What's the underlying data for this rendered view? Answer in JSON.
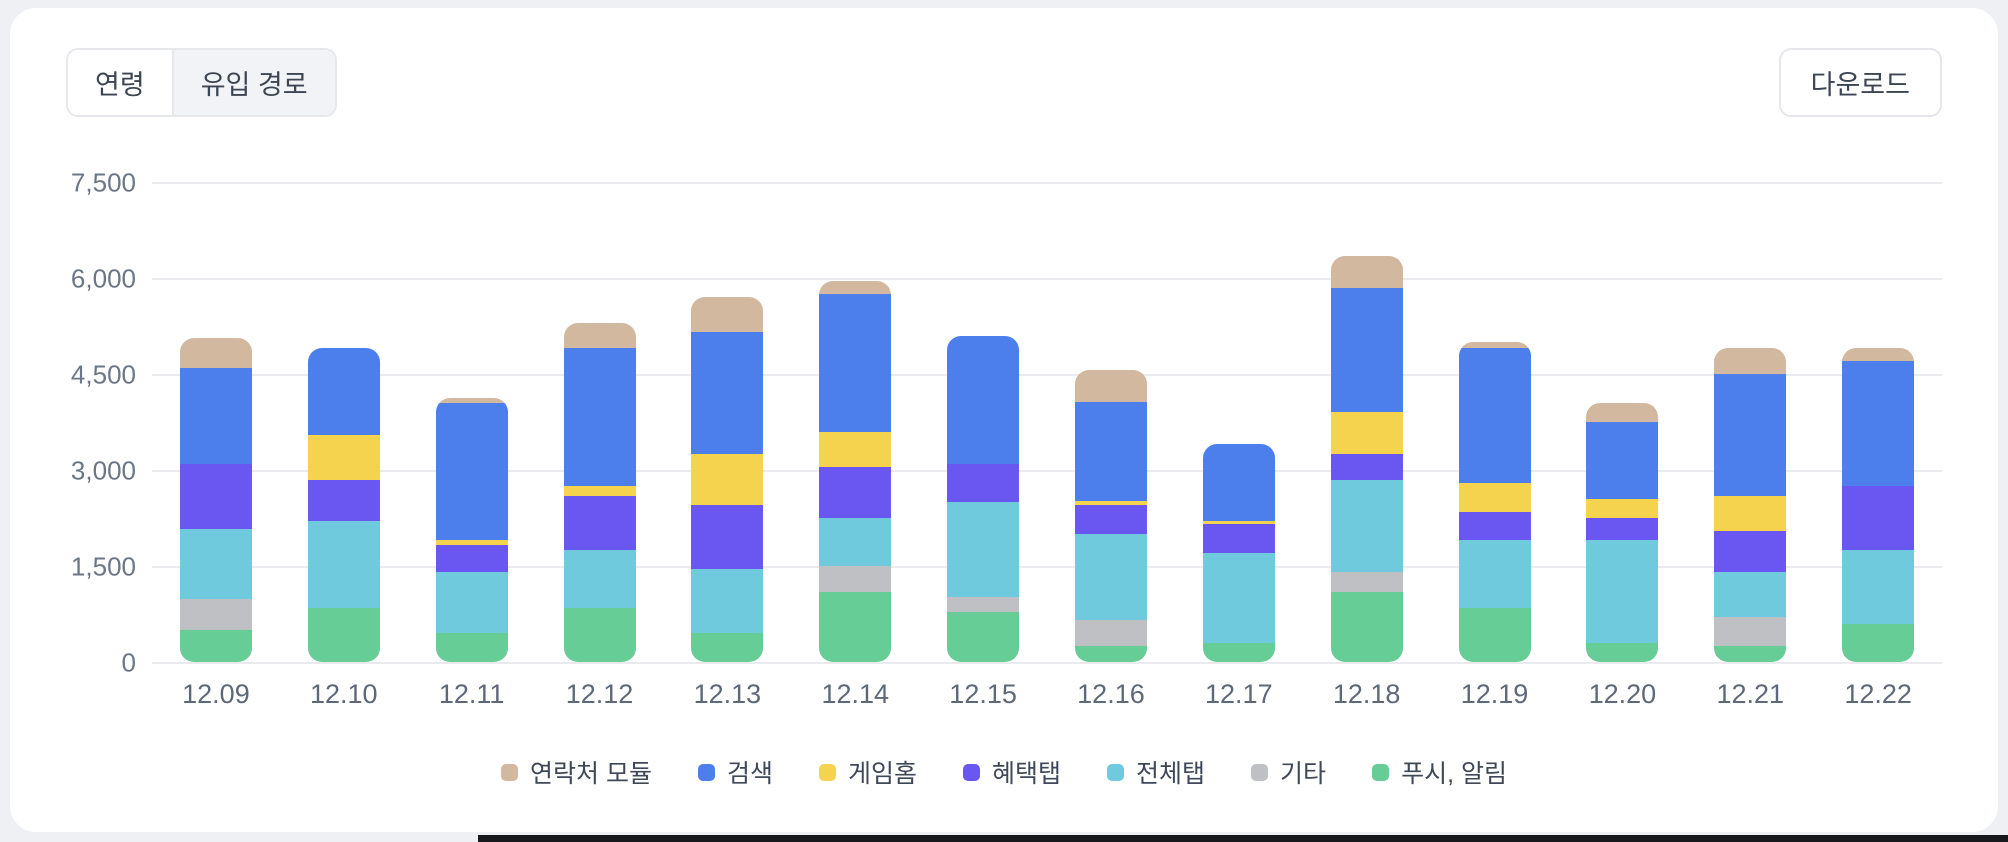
{
  "header": {
    "tabs": [
      {
        "label": "연령",
        "active": true
      },
      {
        "label": "유입 경로",
        "active": false
      }
    ],
    "download_label": "다운로드"
  },
  "colors": {
    "card_bg": "#ffffff",
    "page_bg": "#eef0f4",
    "grid": "#e9ebef",
    "axis_text": "#6b7686",
    "label_text": "#3f4858"
  },
  "chart_data": {
    "type": "bar",
    "stacked": true,
    "title": "",
    "xlabel": "",
    "ylabel": "",
    "grid": true,
    "legend_position": "bottom",
    "ylim": [
      0,
      7500
    ],
    "y_ticks": [
      {
        "label": "0",
        "value": 0
      },
      {
        "label": "1,500",
        "value": 1500
      },
      {
        "label": "3,000",
        "value": 3000
      },
      {
        "label": "4,500",
        "value": 4500
      },
      {
        "label": "6,000",
        "value": 6000
      },
      {
        "label": "7,500",
        "value": 7500
      }
    ],
    "categories": [
      "12.09",
      "12.10",
      "12.11",
      "12.12",
      "12.13",
      "12.14",
      "12.15",
      "12.16",
      "12.17",
      "12.18",
      "12.19",
      "12.20",
      "12.21",
      "12.22"
    ],
    "series": [
      {
        "name": "연락처 모듈",
        "color": "#d2b89e",
        "values": [
          470,
          0,
          70,
          400,
          550,
          200,
          0,
          500,
          0,
          500,
          100,
          300,
          400,
          200
        ]
      },
      {
        "name": "검색",
        "color": "#4d7fec",
        "values": [
          1500,
          1350,
          2150,
          2150,
          1900,
          2150,
          2000,
          1550,
          1200,
          1950,
          2100,
          1200,
          1900,
          1950
        ]
      },
      {
        "name": "게임홈",
        "color": "#f5d34e",
        "values": [
          0,
          700,
          70,
          150,
          800,
          550,
          0,
          70,
          50,
          650,
          450,
          300,
          550,
          0
        ]
      },
      {
        "name": "혜택탭",
        "color": "#6a57f1",
        "values": [
          1010,
          650,
          430,
          850,
          1000,
          800,
          600,
          450,
          450,
          400,
          450,
          350,
          650,
          1000
        ]
      },
      {
        "name": "전체탭",
        "color": "#70cadd",
        "values": [
          1100,
          1350,
          950,
          900,
          1000,
          750,
          1490,
          1350,
          1400,
          1450,
          1050,
          1600,
          700,
          1150
        ]
      },
      {
        "name": "기타",
        "color": "#bfc0c3",
        "values": [
          480,
          0,
          0,
          0,
          0,
          400,
          230,
          400,
          0,
          300,
          0,
          0,
          450,
          0
        ]
      },
      {
        "name": "푸시, 알림",
        "color": "#66cd96",
        "values": [
          500,
          850,
          450,
          850,
          450,
          1100,
          780,
          250,
          300,
          1100,
          850,
          300,
          250,
          600
        ]
      }
    ],
    "stack_order": [
      "푸시, 알림",
      "기타",
      "전체탭",
      "혜택탭",
      "게임홈",
      "검색",
      "연락처 모듈"
    ]
  }
}
